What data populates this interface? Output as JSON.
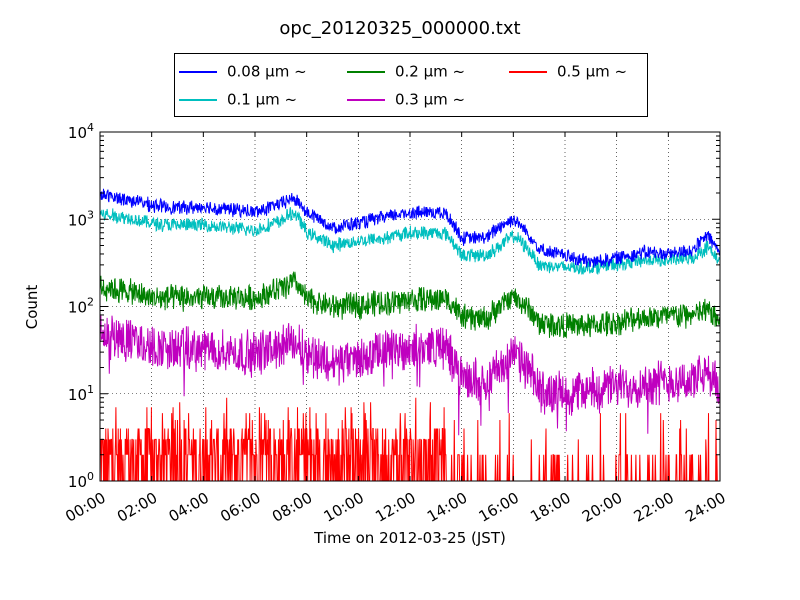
{
  "chart_data": {
    "type": "line",
    "title": "opc_20120325_000000.txt",
    "xlabel": "Time on 2012-03-25 (JST)",
    "ylabel": "Count",
    "xlim": [
      0,
      24
    ],
    "ylim": [
      1,
      10000
    ],
    "yscale": "log",
    "grid": true,
    "legend_placement": "top-center",
    "x_tick_labels": [
      "00:00",
      "02:00",
      "04:00",
      "06:00",
      "08:00",
      "10:00",
      "12:00",
      "14:00",
      "16:00",
      "18:00",
      "20:00",
      "22:00",
      "24:00"
    ],
    "y_tick_labels": [
      {
        "base": "10",
        "exp": "0"
      },
      {
        "base": "10",
        "exp": "1"
      },
      {
        "base": "10",
        "exp": "2"
      },
      {
        "base": "10",
        "exp": "3"
      },
      {
        "base": "10",
        "exp": "4"
      }
    ],
    "x": [
      0,
      1,
      2,
      3,
      4,
      5,
      6,
      7,
      7.5,
      8,
      9,
      10,
      11,
      12,
      13,
      13.4,
      14,
      15,
      15.5,
      16,
      17,
      18,
      19,
      20,
      21,
      22,
      23,
      23.5,
      24
    ],
    "series": [
      {
        "name": "0.08 μm ~",
        "color": "#0000ff",
        "values": [
          1900,
          1700,
          1450,
          1350,
          1380,
          1300,
          1200,
          1500,
          1750,
          1200,
          800,
          900,
          1050,
          1200,
          1200,
          1150,
          600,
          620,
          850,
          1000,
          450,
          380,
          320,
          360,
          420,
          400,
          450,
          650,
          400
        ]
      },
      {
        "name": "0.1 μm ~",
        "color": "#00bfbf",
        "values": [
          1150,
          1050,
          900,
          850,
          860,
          800,
          740,
          950,
          1200,
          700,
          500,
          560,
          610,
          700,
          700,
          680,
          380,
          390,
          500,
          650,
          300,
          280,
          280,
          300,
          340,
          340,
          360,
          480,
          320
        ]
      },
      {
        "name": "0.2 μm ~",
        "color": "#008000",
        "values": [
          170,
          150,
          125,
          125,
          125,
          125,
          125,
          160,
          190,
          120,
          100,
          105,
          110,
          120,
          120,
          125,
          75,
          72,
          100,
          130,
          65,
          60,
          60,
          65,
          75,
          78,
          80,
          90,
          70
        ]
      },
      {
        "name": "0.3 μm ~",
        "color": "#bf00bf",
        "values": [
          48,
          42,
          34,
          32,
          32,
          30,
          29,
          34,
          40,
          30,
          22,
          25,
          30,
          34,
          35,
          33,
          14,
          15,
          20,
          28,
          11,
          10,
          11,
          12,
          13,
          14,
          14,
          17,
          11
        ]
      },
      {
        "name": "0.5 μm ~",
        "color": "#ff0000",
        "values": [
          1.6,
          1.6,
          1.6,
          1.6,
          1.6,
          1.6,
          1.6,
          1.6,
          1.6,
          1.6,
          1.6,
          1.6,
          1.6,
          1.6,
          1.6,
          1.6,
          1.2,
          1.2,
          1.3,
          1.4,
          1.1,
          1.1,
          1.1,
          1.1,
          1.1,
          1.1,
          1.1,
          1.1,
          1.1
        ]
      }
    ]
  }
}
